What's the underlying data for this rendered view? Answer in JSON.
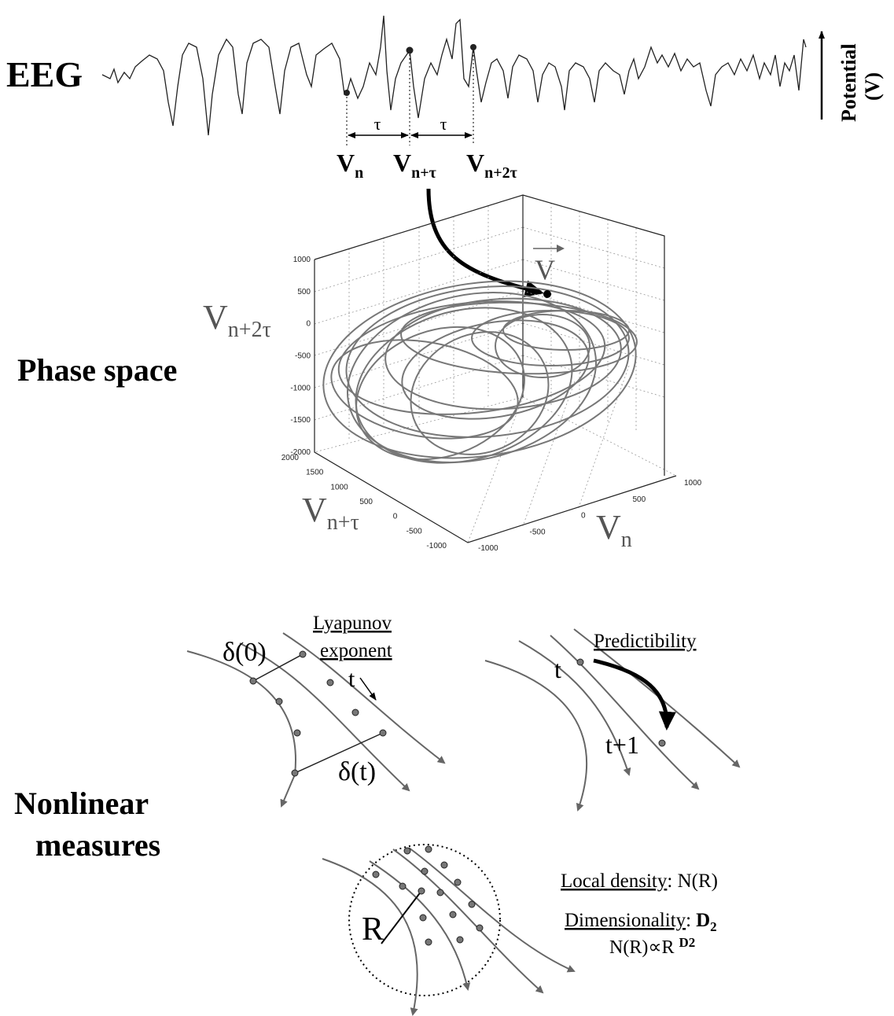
{
  "eeg": {
    "label": "EEG",
    "axis_label": {
      "line1": "Potential",
      "line2": "(V)"
    },
    "delay_labels": [
      "τ",
      "τ"
    ],
    "samples": [
      {
        "main": "V",
        "sub": "n"
      },
      {
        "main": "V",
        "sub": "n+τ"
      },
      {
        "main": "V",
        "sub": "n+2τ"
      }
    ]
  },
  "phase_space": {
    "title": "Phase space",
    "vector_label": "V",
    "z_axis": {
      "main": "V",
      "sub": "n+2τ",
      "ticks": [
        1000,
        500,
        0,
        -500,
        -1000,
        -1500,
        -2000
      ]
    },
    "y_axis": {
      "main": "V",
      "sub": "n+τ",
      "ticks": [
        2000,
        1500,
        1000,
        500,
        0,
        -500,
        -1000
      ]
    },
    "x_axis": {
      "main": "V",
      "sub": "n",
      "ticks": [
        -1000,
        -500,
        0,
        500,
        1000
      ]
    }
  },
  "nonlinear_measures": {
    "title": {
      "line1": "Nonlinear",
      "line2": "measures"
    },
    "lyapunov": {
      "label_line1": "Lyapunov",
      "label_line2": "exponent",
      "initial": "δ(0)",
      "final": "δ(t)",
      "time": "t"
    },
    "predictability": {
      "label": "Predictibility",
      "t": "t",
      "t_next": "t+1"
    },
    "dimension": {
      "radius": "R",
      "density_term": "Local density",
      "density_value": ": N(R)",
      "dimensionality_term": "Dimensionality",
      "dimensionality_sep": ":",
      "d2_main": "D",
      "d2_sub": "2",
      "formula_main": "N(R)∝R",
      "formula_sup": "D2"
    }
  }
}
